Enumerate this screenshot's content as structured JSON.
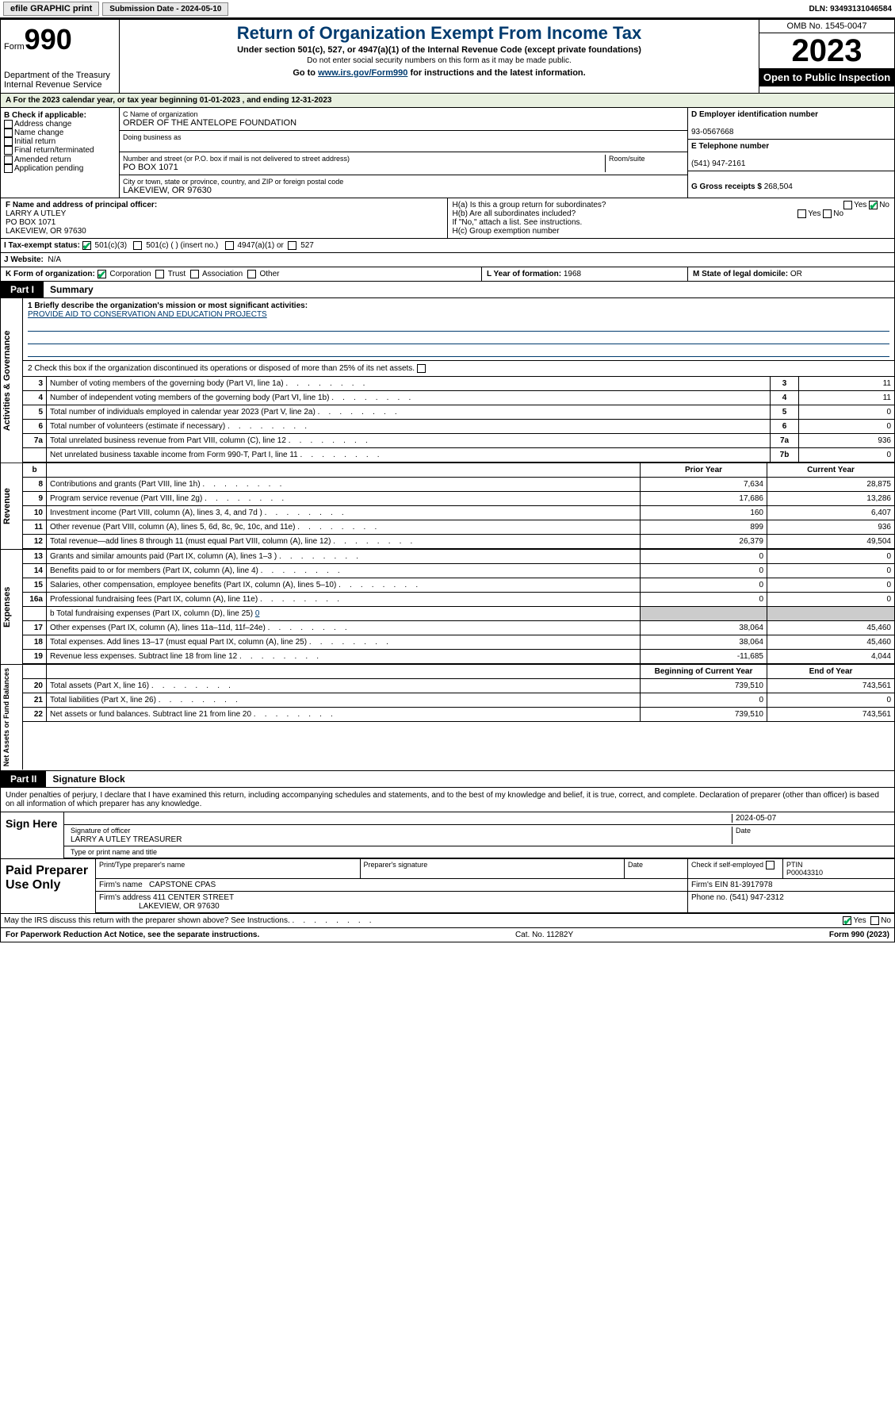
{
  "topbar": {
    "efile_label": "efile GRAPHIC print",
    "submission_label": "Submission Date - 2024-05-10",
    "dln_label": "DLN: 93493131046584"
  },
  "header": {
    "form_label": "Form",
    "form_no": "990",
    "dept": "Department of the Treasury",
    "irs": "Internal Revenue Service",
    "title": "Return of Organization Exempt From Income Tax",
    "sub1": "Under section 501(c), 527, or 4947(a)(1) of the Internal Revenue Code (except private foundations)",
    "sub2": "Do not enter social security numbers on this form as it may be made public.",
    "sub3_pre": "Go to ",
    "sub3_link": "www.irs.gov/Form990",
    "sub3_post": " for instructions and the latest information.",
    "omb": "OMB No. 1545-0047",
    "year": "2023",
    "open": "Open to Public Inspection"
  },
  "taxyear": "For the 2023 calendar year, or tax year beginning 01-01-2023   , and ending 12-31-2023",
  "B": {
    "label": "B Check if applicable:",
    "opts": [
      "Address change",
      "Name change",
      "Initial return",
      "Final return/terminated",
      "Amended return",
      "Application pending"
    ]
  },
  "C": {
    "name_lbl": "C Name of organization",
    "name": "ORDER OF THE ANTELOPE FOUNDATION",
    "dba_lbl": "Doing business as",
    "street_lbl": "Number and street (or P.O. box if mail is not delivered to street address)",
    "room_lbl": "Room/suite",
    "street": "PO BOX 1071",
    "city_lbl": "City or town, state or province, country, and ZIP or foreign postal code",
    "city": "LAKEVIEW, OR   97630"
  },
  "D": {
    "ein_lbl": "D Employer identification number",
    "ein": "93-0567668",
    "phone_lbl": "E Telephone number",
    "phone": "(541) 947-2161",
    "gross_lbl": "G Gross receipts $",
    "gross": "268,504"
  },
  "F": {
    "lbl": "F  Name and address of principal officer:",
    "name": "LARRY A UTLEY",
    "addr1": "PO BOX 1071",
    "addr2": "LAKEVIEW, OR   97630"
  },
  "H": {
    "a": "H(a)  Is this a group return for subordinates?",
    "b": "H(b)  Are all subordinates included?",
    "b_note": "If \"No,\" attach a list. See instructions.",
    "c": "H(c)  Group exemption number",
    "yes": "Yes",
    "no": "No"
  },
  "I": {
    "lbl": "I   Tax-exempt status:",
    "opts": [
      "501(c)(3)",
      "501(c) (  ) (insert no.)",
      "4947(a)(1) or",
      "527"
    ]
  },
  "J": {
    "lbl": "J   Website:",
    "val": "N/A"
  },
  "K": {
    "lbl": "K Form of organization:",
    "opts": [
      "Corporation",
      "Trust",
      "Association",
      "Other"
    ]
  },
  "L": {
    "lbl": "L Year of formation:",
    "val": "1968"
  },
  "M": {
    "lbl": "M State of legal domicile:",
    "val": "OR"
  },
  "part1": {
    "tag": "Part I",
    "title": "Summary"
  },
  "summary": {
    "side1": "Activities & Governance",
    "l1_lbl": "1  Briefly describe the organization's mission or most significant activities:",
    "l1_val": "PROVIDE AID TO CONSERVATION AND EDUCATION PROJECTS",
    "l2": "2   Check this box      if the organization discontinued its operations or disposed of more than 25% of its net assets.",
    "rows": [
      {
        "n": "3",
        "t": "Number of voting members of the governing body (Part VI, line 1a)",
        "rn": "3",
        "v": "11"
      },
      {
        "n": "4",
        "t": "Number of independent voting members of the governing body (Part VI, line 1b)",
        "rn": "4",
        "v": "11"
      },
      {
        "n": "5",
        "t": "Total number of individuals employed in calendar year 2023 (Part V, line 2a)",
        "rn": "5",
        "v": "0"
      },
      {
        "n": "6",
        "t": "Total number of volunteers (estimate if necessary)",
        "rn": "6",
        "v": "0"
      },
      {
        "n": "7a",
        "t": "Total unrelated business revenue from Part VIII, column (C), line 12",
        "rn": "7a",
        "v": "936"
      },
      {
        "n": " ",
        "t": "Net unrelated business taxable income from Form 990-T, Part I, line 11",
        "rn": "7b",
        "v": "0"
      }
    ]
  },
  "revenue": {
    "side": "Revenue",
    "hdr_prior": "Prior Year",
    "hdr_curr": "Current Year",
    "rows": [
      {
        "n": "8",
        "t": "Contributions and grants (Part VIII, line 1h)",
        "p": "7,634",
        "c": "28,875"
      },
      {
        "n": "9",
        "t": "Program service revenue (Part VIII, line 2g)",
        "p": "17,686",
        "c": "13,286"
      },
      {
        "n": "10",
        "t": "Investment income (Part VIII, column (A), lines 3, 4, and 7d )",
        "p": "160",
        "c": "6,407"
      },
      {
        "n": "11",
        "t": "Other revenue (Part VIII, column (A), lines 5, 6d, 8c, 9c, 10c, and 11e)",
        "p": "899",
        "c": "936"
      },
      {
        "n": "12",
        "t": "Total revenue—add lines 8 through 11 (must equal Part VIII, column (A), line 12)",
        "p": "26,379",
        "c": "49,504"
      }
    ]
  },
  "expenses": {
    "side": "Expenses",
    "rows": [
      {
        "n": "13",
        "t": "Grants and similar amounts paid (Part IX, column (A), lines 1–3 )",
        "p": "0",
        "c": "0"
      },
      {
        "n": "14",
        "t": "Benefits paid to or for members (Part IX, column (A), line 4)",
        "p": "0",
        "c": "0"
      },
      {
        "n": "15",
        "t": "Salaries, other compensation, employee benefits (Part IX, column (A), lines 5–10)",
        "p": "0",
        "c": "0"
      },
      {
        "n": "16a",
        "t": "Professional fundraising fees (Part IX, column (A), line 11e)",
        "p": "0",
        "c": "0"
      }
    ],
    "l16b": "b  Total fundraising expenses (Part IX, column (D), line 25) ",
    "l16b_val": "0",
    "rows2": [
      {
        "n": "17",
        "t": "Other expenses (Part IX, column (A), lines 11a–11d, 11f–24e)",
        "p": "38,064",
        "c": "45,460"
      },
      {
        "n": "18",
        "t": "Total expenses. Add lines 13–17 (must equal Part IX, column (A), line 25)",
        "p": "38,064",
        "c": "45,460"
      },
      {
        "n": "19",
        "t": "Revenue less expenses. Subtract line 18 from line 12",
        "p": "-11,685",
        "c": "4,044"
      }
    ]
  },
  "netassets": {
    "side": "Net Assets or Fund Balances",
    "hdr_beg": "Beginning of Current Year",
    "hdr_end": "End of Year",
    "rows": [
      {
        "n": "20",
        "t": "Total assets (Part X, line 16)",
        "p": "739,510",
        "c": "743,561"
      },
      {
        "n": "21",
        "t": "Total liabilities (Part X, line 26)",
        "p": "0",
        "c": "0"
      },
      {
        "n": "22",
        "t": "Net assets or fund balances. Subtract line 21 from line 20",
        "p": "739,510",
        "c": "743,561"
      }
    ]
  },
  "part2": {
    "tag": "Part II",
    "title": "Signature Block"
  },
  "sig": {
    "declaration": "Under penalties of perjury, I declare that I have examined this return, including accompanying schedules and statements, and to the best of my knowledge and belief, it is true, correct, and complete. Declaration of preparer (other than officer) is based on all information of which preparer has any knowledge.",
    "sign_here": "Sign Here",
    "sig_officer_lbl": "Signature of officer",
    "officer": "LARRY A UTLEY  TREASURER",
    "type_lbl": "Type or print name and title",
    "date_lbl": "Date",
    "date": "2024-05-07"
  },
  "paid": {
    "side": "Paid Preparer Use Only",
    "print_lbl": "Print/Type preparer's name",
    "prep_sig_lbl": "Preparer's signature",
    "date_lbl": "Date",
    "check_lbl": "Check         if self-employed",
    "ptin_lbl": "PTIN",
    "ptin": "P00043310",
    "firm_name_lbl": "Firm's name",
    "firm_name": "CAPSTONE CPAS",
    "firm_ein_lbl": "Firm's EIN",
    "firm_ein": "81-3917978",
    "firm_addr_lbl": "Firm's address",
    "firm_addr1": "411 CENTER STREET",
    "firm_addr2": "LAKEVIEW, OR   97630",
    "phone_lbl": "Phone no.",
    "phone": "(541) 947-2312"
  },
  "discuss": {
    "text": "May the IRS discuss this return with the preparer shown above? See Instructions.",
    "yes": "Yes",
    "no": "No"
  },
  "footer": {
    "left": "For Paperwork Reduction Act Notice, see the separate instructions.",
    "mid": "Cat. No. 11282Y",
    "right_pre": "Form ",
    "right_form": "990",
    "right_post": " (2023)"
  },
  "colors": {
    "link": "#003b6f",
    "lightgreen": "#e8f0e0"
  }
}
